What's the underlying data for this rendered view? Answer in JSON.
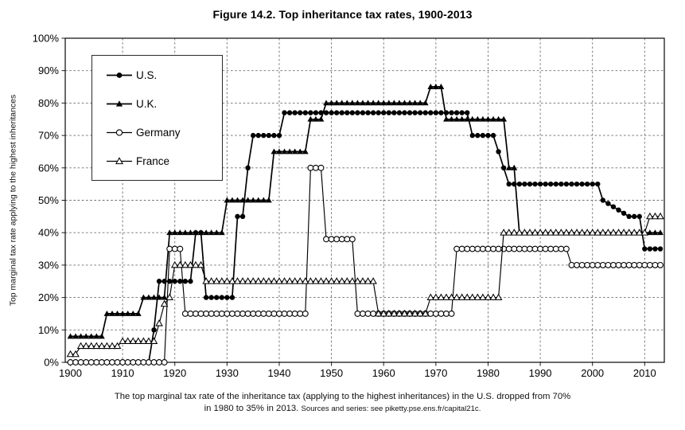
{
  "figure": {
    "title": "Figure 14.2. Top inheritance tax rates, 1900-2013",
    "y_axis_label": "Top marginal tax rate applying to the highest inheritances",
    "caption_line1": "The top marginal tax rate of the inheritance tax (applying to the highest inheritances) in the U.S. dropped from 70%",
    "caption_line2": "in 1980 to 35% in 2013.",
    "caption_sources": "Sources and series: see piketty.pse.ens.fr/capital21c."
  },
  "chart_data": {
    "type": "line",
    "title": "Figure 14.2. Top inheritance tax rates, 1900-2013",
    "xlabel": "",
    "ylabel": "Top marginal tax rate applying to the highest inheritances",
    "x_range": [
      1900,
      2013
    ],
    "ylim": [
      0,
      100
    ],
    "x_ticks": [
      1900,
      1910,
      1920,
      1930,
      1940,
      1950,
      1960,
      1970,
      1980,
      1990,
      2000,
      2010
    ],
    "y_ticks": [
      0,
      10,
      20,
      30,
      40,
      50,
      60,
      70,
      80,
      90,
      100
    ],
    "y_tick_suffix": "%",
    "grid": "dashed, both axes",
    "legend_position": "upper left",
    "background_color": "#ffffff",
    "line_color": "#000000",
    "series": [
      {
        "name": "U.S.",
        "marker": "filled-circle",
        "color": "#000000",
        "segments": [
          [
            1900,
            1915,
            0
          ],
          [
            1916,
            1916,
            10
          ],
          [
            1917,
            1923,
            25
          ],
          [
            1924,
            1925,
            40
          ],
          [
            1926,
            1931,
            20
          ],
          [
            1932,
            1933,
            45
          ],
          [
            1934,
            1934,
            60
          ],
          [
            1935,
            1940,
            70
          ],
          [
            1941,
            1976,
            77
          ],
          [
            1977,
            1981,
            70
          ],
          [
            1982,
            1982,
            65
          ],
          [
            1983,
            1983,
            60
          ],
          [
            1984,
            2001,
            55
          ],
          [
            2002,
            2002,
            50
          ],
          [
            2003,
            2003,
            49
          ],
          [
            2004,
            2004,
            48
          ],
          [
            2005,
            2005,
            47
          ],
          [
            2006,
            2006,
            46
          ],
          [
            2007,
            2009,
            45
          ],
          [
            2010,
            2013,
            35
          ]
        ]
      },
      {
        "name": "U.K.",
        "marker": "filled-triangle",
        "color": "#000000",
        "segments": [
          [
            1900,
            1906,
            8
          ],
          [
            1907,
            1913,
            15
          ],
          [
            1914,
            1918,
            20
          ],
          [
            1919,
            1929,
            40
          ],
          [
            1930,
            1938,
            50
          ],
          [
            1939,
            1945,
            65
          ],
          [
            1946,
            1948,
            75
          ],
          [
            1949,
            1968,
            80
          ],
          [
            1969,
            1971,
            85
          ],
          [
            1972,
            1983,
            75
          ],
          [
            1984,
            1985,
            60
          ],
          [
            1986,
            2013,
            40
          ]
        ]
      },
      {
        "name": "Germany",
        "marker": "open-circle",
        "color": "#000000",
        "segments": [
          [
            1900,
            1918,
            0
          ],
          [
            1919,
            1921,
            35
          ],
          [
            1922,
            1945,
            15
          ],
          [
            1946,
            1948,
            60
          ],
          [
            1949,
            1954,
            38
          ],
          [
            1955,
            1973,
            15
          ],
          [
            1974,
            1995,
            35
          ],
          [
            1996,
            2013,
            30
          ]
        ]
      },
      {
        "name": "France",
        "marker": "open-triangle",
        "color": "#000000",
        "segments": [
          [
            1900,
            1901,
            2.5
          ],
          [
            1902,
            1909,
            5
          ],
          [
            1910,
            1916,
            6.5
          ],
          [
            1917,
            1917,
            12
          ],
          [
            1918,
            1918,
            18
          ],
          [
            1919,
            1919,
            20
          ],
          [
            1920,
            1925,
            30
          ],
          [
            1926,
            1958,
            25
          ],
          [
            1959,
            1968,
            15
          ],
          [
            1969,
            1982,
            20
          ],
          [
            1983,
            2010,
            40
          ],
          [
            2011,
            2013,
            45
          ]
        ]
      }
    ]
  }
}
